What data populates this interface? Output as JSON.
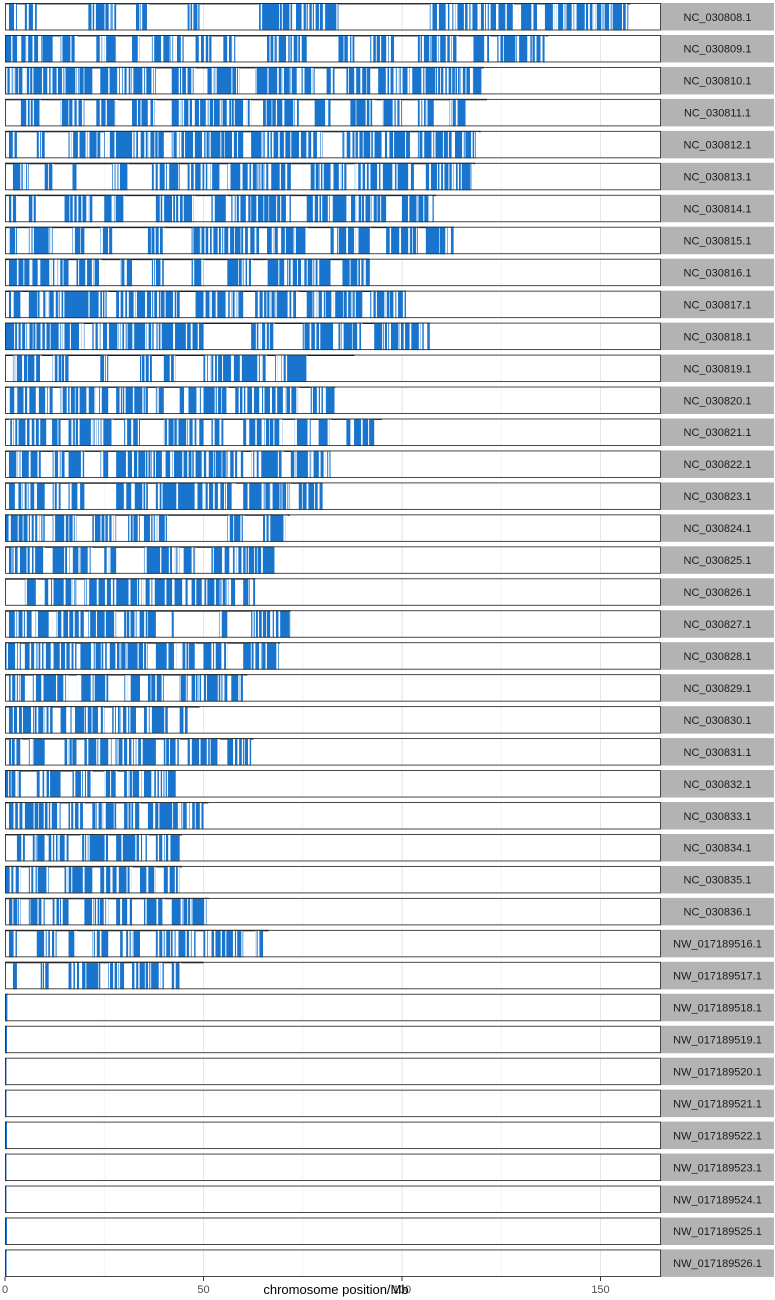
{
  "chart_data": {
    "type": "faceted-density-strip",
    "xlabel": "chromosome position/Mb",
    "xlim": [
      0,
      165
    ],
    "x_ticks": [
      0,
      50,
      100,
      150
    ],
    "grid": true,
    "facet_strip_position": "right",
    "colors": {
      "mark": "#1874CD",
      "panel_border": "#333333",
      "strip_fill": "#b3b3b3",
      "grid": "#ebebeb",
      "track_line": "#000000"
    },
    "chromosomes": [
      {
        "name": "NC_030808.1",
        "length": 157.6,
        "dense": [
          [
            1,
            3
          ],
          [
            5,
            8
          ],
          [
            21,
            28
          ],
          [
            33,
            36
          ],
          [
            46,
            49
          ],
          [
            64,
            84
          ],
          [
            107,
            128
          ],
          [
            130,
            134
          ],
          [
            136,
            157
          ]
        ]
      },
      {
        "name": "NC_030809.1",
        "length": 136.8,
        "dense": [
          [
            0,
            12
          ],
          [
            14,
            18
          ],
          [
            23,
            28
          ],
          [
            32,
            34
          ],
          [
            37,
            45
          ],
          [
            48,
            52
          ],
          [
            55,
            58
          ],
          [
            66,
            76
          ],
          [
            84,
            88
          ],
          [
            92,
            98
          ],
          [
            104,
            114
          ],
          [
            118,
            122
          ],
          [
            124,
            136
          ]
        ]
      },
      {
        "name": "NC_030810.1",
        "length": 120.6,
        "dense": [
          [
            0,
            22
          ],
          [
            24,
            38
          ],
          [
            42,
            48
          ],
          [
            51,
            59
          ],
          [
            63,
            78
          ],
          [
            81,
            83
          ],
          [
            86,
            92
          ],
          [
            94,
            120
          ]
        ]
      },
      {
        "name": "NC_030811.1",
        "length": 121.4,
        "dense": [
          [
            4,
            9
          ],
          [
            14,
            20
          ],
          [
            23,
            28
          ],
          [
            32,
            38
          ],
          [
            42,
            62
          ],
          [
            65,
            74
          ],
          [
            78,
            82
          ],
          [
            87,
            93
          ],
          [
            95,
            100
          ],
          [
            104,
            108
          ],
          [
            112,
            116
          ]
        ]
      },
      {
        "name": "NC_030812.1",
        "length": 119.8,
        "dense": [
          [
            1,
            3
          ],
          [
            8,
            10
          ],
          [
            16,
            24
          ],
          [
            25,
            40
          ],
          [
            42,
            60
          ],
          [
            62,
            80
          ],
          [
            85,
            102
          ],
          [
            104,
            119
          ]
        ]
      },
      {
        "name": "NC_030813.1",
        "length": 118.4,
        "dense": [
          [
            2,
            6
          ],
          [
            10,
            12
          ],
          [
            17,
            18
          ],
          [
            27,
            31
          ],
          [
            37,
            44
          ],
          [
            46,
            54
          ],
          [
            56,
            72
          ],
          [
            77,
            86
          ],
          [
            88,
            103
          ],
          [
            106,
            118
          ]
        ]
      },
      {
        "name": "NC_030814.1",
        "length": 108.5,
        "dense": [
          [
            1,
            3
          ],
          [
            6,
            8
          ],
          [
            15,
            22
          ],
          [
            25,
            30
          ],
          [
            38,
            48
          ],
          [
            52,
            56
          ],
          [
            57,
            72
          ],
          [
            76,
            96
          ],
          [
            100,
            108
          ]
        ]
      },
      {
        "name": "NC_030815.1",
        "length": 113.0,
        "dense": [
          [
            1,
            3
          ],
          [
            6,
            12
          ],
          [
            17,
            20
          ],
          [
            24,
            27
          ],
          [
            36,
            40
          ],
          [
            47,
            64
          ],
          [
            66,
            76
          ],
          [
            82,
            92
          ],
          [
            96,
            104
          ],
          [
            106,
            113
          ]
        ]
      },
      {
        "name": "NC_030816.1",
        "length": 91.8,
        "dense": [
          [
            1,
            16
          ],
          [
            18,
            24
          ],
          [
            29,
            32
          ],
          [
            37,
            40
          ],
          [
            47,
            50
          ],
          [
            56,
            62
          ],
          [
            66,
            82
          ],
          [
            85,
            92
          ]
        ]
      },
      {
        "name": "NC_030817.1",
        "length": 101.0,
        "dense": [
          [
            1,
            4
          ],
          [
            6,
            26
          ],
          [
            28,
            44
          ],
          [
            48,
            60
          ],
          [
            63,
            74
          ],
          [
            76,
            90
          ],
          [
            92,
            101
          ]
        ]
      },
      {
        "name": "NC_030818.1",
        "length": 107.0,
        "dense": [
          [
            0,
            20
          ],
          [
            22,
            50
          ],
          [
            62,
            68
          ],
          [
            75,
            90
          ],
          [
            93,
            107
          ]
        ]
      },
      {
        "name": "NC_030819.1",
        "length": 88.0,
        "dense": [
          [
            2,
            9
          ],
          [
            12,
            16
          ],
          [
            24,
            26
          ],
          [
            34,
            37
          ],
          [
            40,
            43
          ],
          [
            50,
            66
          ],
          [
            68,
            76
          ]
        ]
      },
      {
        "name": "NC_030820.1",
        "length": 83.2,
        "dense": [
          [
            1,
            12
          ],
          [
            14,
            26
          ],
          [
            28,
            36
          ],
          [
            38,
            40
          ],
          [
            44,
            56
          ],
          [
            58,
            74
          ],
          [
            77,
            83
          ]
        ]
      },
      {
        "name": "NC_030821.1",
        "length": 95.0,
        "dense": [
          [
            1,
            14
          ],
          [
            16,
            27
          ],
          [
            30,
            34
          ],
          [
            40,
            50
          ],
          [
            52,
            55
          ],
          [
            60,
            70
          ],
          [
            73,
            77
          ],
          [
            79,
            82
          ],
          [
            86,
            93
          ]
        ]
      },
      {
        "name": "NC_030822.1",
        "length": 82.0,
        "dense": [
          [
            1,
            9
          ],
          [
            12,
            15
          ],
          [
            16,
            20
          ],
          [
            24,
            26
          ],
          [
            28,
            60
          ],
          [
            62,
            70
          ],
          [
            72,
            82
          ]
        ]
      },
      {
        "name": "NC_030823.1",
        "length": 80.0,
        "dense": [
          [
            1,
            10
          ],
          [
            12,
            14
          ],
          [
            16,
            20
          ],
          [
            28,
            36
          ],
          [
            38,
            58
          ],
          [
            60,
            72
          ],
          [
            74,
            80
          ]
        ]
      },
      {
        "name": "NC_030824.1",
        "length": 71.8,
        "dense": [
          [
            0,
            10
          ],
          [
            12,
            18
          ],
          [
            22,
            28
          ],
          [
            31,
            34
          ],
          [
            35,
            41
          ],
          [
            56,
            60
          ],
          [
            65,
            71
          ]
        ]
      },
      {
        "name": "NC_030825.1",
        "length": 67.8,
        "dense": [
          [
            1,
            10
          ],
          [
            12,
            22
          ],
          [
            25,
            28
          ],
          [
            35,
            44
          ],
          [
            45,
            48
          ],
          [
            52,
            68
          ]
        ]
      },
      {
        "name": "NC_030826.1",
        "length": 63.0,
        "dense": [
          [
            5,
            8
          ],
          [
            10,
            18
          ],
          [
            20,
            46
          ],
          [
            47,
            58
          ],
          [
            60,
            63
          ]
        ]
      },
      {
        "name": "NC_030827.1",
        "length": 72.0,
        "dense": [
          [
            1,
            11
          ],
          [
            13,
            20
          ],
          [
            21,
            28
          ],
          [
            30,
            38
          ],
          [
            42,
            42.5
          ],
          [
            54,
            56
          ],
          [
            62,
            72
          ]
        ]
      },
      {
        "name": "NC_030828.1",
        "length": 69.3,
        "dense": [
          [
            0,
            4
          ],
          [
            5,
            18
          ],
          [
            19,
            36
          ],
          [
            38,
            48
          ],
          [
            50,
            56
          ],
          [
            60,
            69
          ]
        ]
      },
      {
        "name": "NC_030829.1",
        "length": 61.0,
        "dense": [
          [
            1,
            5
          ],
          [
            7,
            16
          ],
          [
            18,
            26
          ],
          [
            30,
            34
          ],
          [
            36,
            40
          ],
          [
            44,
            46
          ],
          [
            47,
            56
          ],
          [
            57,
            60
          ]
        ]
      },
      {
        "name": "NC_030830.1",
        "length": 49.0,
        "dense": [
          [
            1,
            12
          ],
          [
            14,
            25
          ],
          [
            27,
            33
          ],
          [
            35,
            41
          ],
          [
            44,
            46
          ]
        ]
      },
      {
        "name": "NC_030831.1",
        "length": 62.6,
        "dense": [
          [
            1,
            4
          ],
          [
            6,
            10
          ],
          [
            15,
            18
          ],
          [
            20,
            38
          ],
          [
            40,
            44
          ],
          [
            46,
            54
          ],
          [
            56,
            62
          ]
        ]
      },
      {
        "name": "NC_030832.1",
        "length": 43.0,
        "dense": [
          [
            0,
            4
          ],
          [
            8,
            14
          ],
          [
            17,
            22
          ],
          [
            25,
            28
          ],
          [
            30,
            43
          ]
        ]
      },
      {
        "name": "NC_030833.1",
        "length": 51.2,
        "dense": [
          [
            1,
            14
          ],
          [
            16,
            20
          ],
          [
            22,
            28
          ],
          [
            30,
            34
          ],
          [
            36,
            50
          ]
        ]
      },
      {
        "name": "NC_030834.1",
        "length": 44.6,
        "dense": [
          [
            3,
            5
          ],
          [
            7,
            10
          ],
          [
            11,
            16
          ],
          [
            19,
            26
          ],
          [
            28,
            36
          ],
          [
            38,
            44
          ]
        ]
      },
      {
        "name": "NC_030835.1",
        "length": 44.6,
        "dense": [
          [
            0,
            4
          ],
          [
            6,
            11
          ],
          [
            15,
            22
          ],
          [
            24,
            32
          ],
          [
            34,
            38
          ],
          [
            40,
            44
          ]
        ]
      },
      {
        "name": "NC_030836.1",
        "length": 51.3,
        "dense": [
          [
            1,
            4
          ],
          [
            6,
            10
          ],
          [
            12,
            16
          ],
          [
            20,
            26
          ],
          [
            28,
            32
          ],
          [
            35,
            40
          ],
          [
            42,
            51
          ]
        ]
      },
      {
        "name": "NW_017189516.1",
        "length": 66.4,
        "dense": [
          [
            1,
            3
          ],
          [
            8,
            13
          ],
          [
            16,
            18
          ],
          [
            22,
            26
          ],
          [
            29,
            34
          ],
          [
            38,
            48
          ],
          [
            50,
            60
          ],
          [
            63,
            65
          ]
        ]
      },
      {
        "name": "NW_017189517.1",
        "length": 50.0,
        "dense": [
          [
            2,
            3
          ],
          [
            9,
            11
          ],
          [
            16,
            24
          ],
          [
            26,
            30
          ],
          [
            32,
            40
          ],
          [
            42,
            44
          ]
        ]
      },
      {
        "name": "NW_017189518.1",
        "length": 0.6,
        "dense": [
          [
            0,
            0.6
          ]
        ]
      },
      {
        "name": "NW_017189519.1",
        "length": 0.5,
        "dense": [
          [
            0,
            0.5
          ]
        ]
      },
      {
        "name": "NW_017189520.1",
        "length": 0.2,
        "dense": [
          [
            0,
            0.2
          ]
        ]
      },
      {
        "name": "NW_017189521.1",
        "length": 0.3,
        "dense": [
          [
            0,
            0.3
          ]
        ]
      },
      {
        "name": "NW_017189522.1",
        "length": 0.5,
        "dense": [
          [
            0,
            0.5
          ]
        ]
      },
      {
        "name": "NW_017189523.1",
        "length": 0.2,
        "dense": [
          [
            0,
            0.2
          ]
        ]
      },
      {
        "name": "NW_017189524.1",
        "length": 0.3,
        "dense": [
          [
            0,
            0.3
          ]
        ]
      },
      {
        "name": "NW_017189525.1",
        "length": 0.5,
        "dense": [
          [
            0,
            0.5
          ]
        ]
      },
      {
        "name": "NW_017189526.1",
        "length": 0.4,
        "dense": [
          [
            0,
            0.4
          ]
        ]
      }
    ]
  }
}
